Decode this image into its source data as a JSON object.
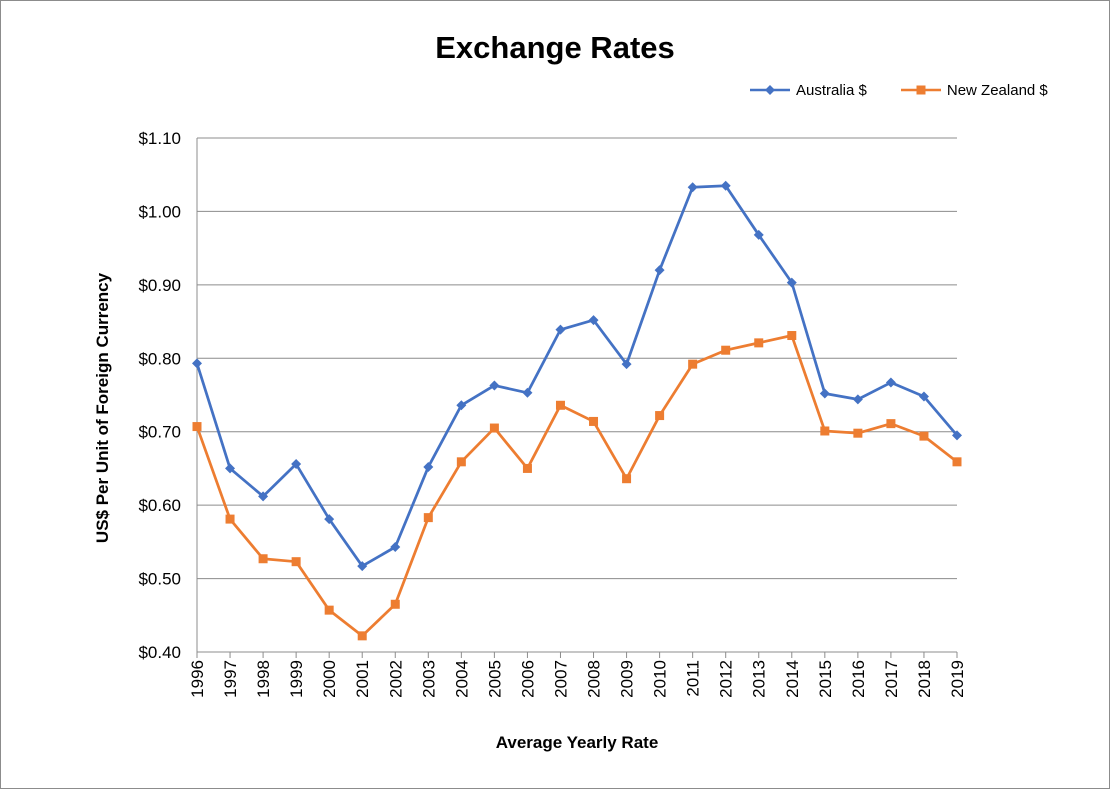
{
  "chart_data": {
    "type": "line",
    "title": "Exchange Rates",
    "xlabel": "Average Yearly Rate",
    "ylabel": "US$ Per Unit of Foreign Currency",
    "ylim": [
      0.4,
      1.1
    ],
    "yticks": [
      "$0.40",
      "$0.50",
      "$0.60",
      "$0.70",
      "$0.80",
      "$0.90",
      "$1.00",
      "$1.10"
    ],
    "ytick_values": [
      0.4,
      0.5,
      0.6,
      0.7,
      0.8,
      0.9,
      1.0,
      1.1
    ],
    "grid": true,
    "legend_position": "top-right",
    "categories": [
      "1996",
      "1997",
      "1998",
      "1999",
      "2000",
      "2001",
      "2002",
      "2003",
      "2004",
      "2005",
      "2006",
      "2007",
      "2008",
      "2009",
      "2010",
      "2011",
      "2012",
      "2013",
      "2014",
      "2015",
      "2016",
      "2017",
      "2018",
      "2019"
    ],
    "series": [
      {
        "name": "Australia $",
        "color": "#4472C4",
        "marker": "diamond",
        "values": [
          0.793,
          0.65,
          0.612,
          0.656,
          0.581,
          0.517,
          0.543,
          0.652,
          0.736,
          0.763,
          0.753,
          0.839,
          0.852,
          0.792,
          0.92,
          1.033,
          1.035,
          0.968,
          0.903,
          0.752,
          0.744,
          0.767,
          0.748,
          0.695
        ]
      },
      {
        "name": "New Zealand $",
        "color": "#ED7D31",
        "marker": "square",
        "values": [
          0.707,
          0.581,
          0.527,
          0.523,
          0.457,
          0.422,
          0.465,
          0.583,
          0.659,
          0.705,
          0.65,
          0.736,
          0.714,
          0.636,
          0.722,
          0.792,
          0.811,
          0.821,
          0.831,
          0.701,
          0.698,
          0.711,
          0.694,
          0.659
        ]
      }
    ]
  }
}
